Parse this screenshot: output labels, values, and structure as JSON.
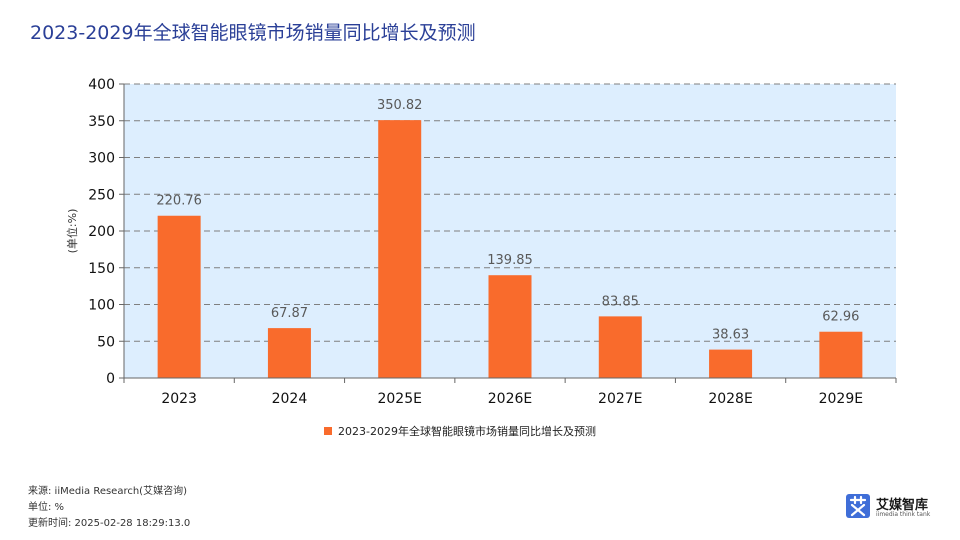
{
  "title": "2023-2029年全球智能眼镜市场销量同比增长及预测",
  "chart_data": {
    "type": "bar",
    "categories": [
      "2023",
      "2024",
      "2025E",
      "2026E",
      "2027E",
      "2028E",
      "2029E"
    ],
    "series": [
      {
        "name": "2023-2029年全球智能眼镜市场销量同比增长及预测",
        "values": [
          220.76,
          67.87,
          350.82,
          139.85,
          83.85,
          38.63,
          62.96
        ],
        "color": "#f96b2c"
      }
    ],
    "data_labels": [
      "220.76",
      "67.87",
      "350.82",
      "139.85",
      "83.85",
      "38.63",
      "62.96"
    ],
    "ylabel": "(单位:%)",
    "ylim": [
      0,
      400
    ],
    "yticks": [
      0,
      50,
      100,
      150,
      200,
      250,
      300,
      350,
      400
    ],
    "grid": true,
    "legend_position": "bottom",
    "plot_background": "#ddeefe",
    "gridline_color": "#7f7f7f"
  },
  "footer": {
    "source": "来源: iiMedia Research(艾媒咨询)",
    "unit": "单位: %",
    "updated": "更新时间: 2025-02-28 18:29:13.0"
  },
  "brand": {
    "name": "艾媒智库",
    "sub": "iimedia think tank",
    "color": "#3f6ed8"
  }
}
